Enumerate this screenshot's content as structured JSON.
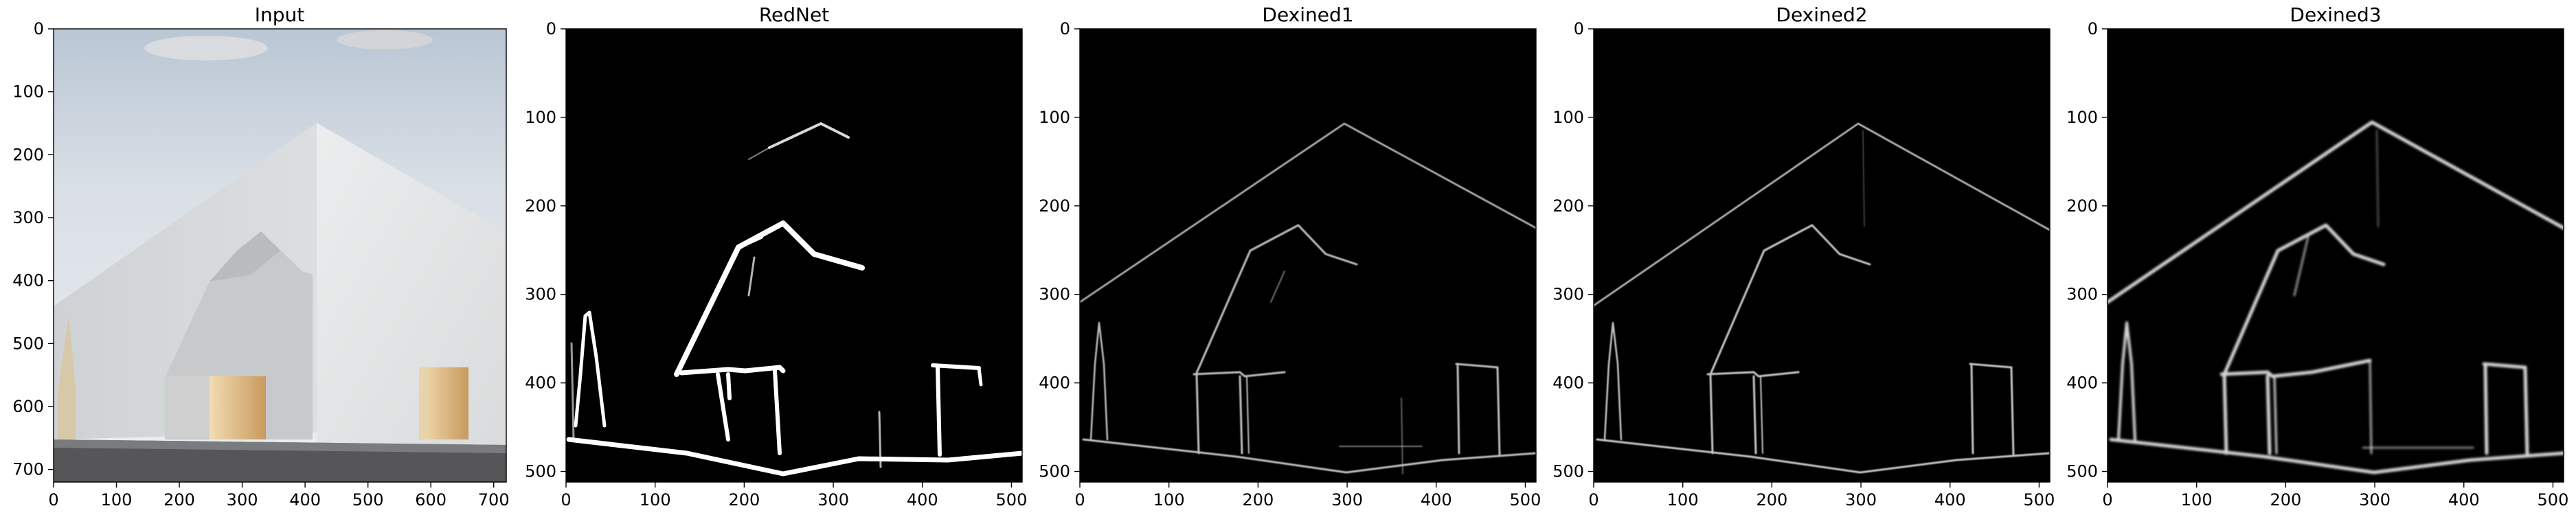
{
  "figure": {
    "panels": [
      {
        "title": "Input",
        "image": "photo",
        "xticks": [
          "0",
          "100",
          "200",
          "300",
          "400",
          "500",
          "600",
          "700"
        ],
        "yticks": [
          "0",
          "100",
          "200",
          "300",
          "400",
          "500",
          "600",
          "700"
        ],
        "xrange": [
          0,
          720
        ],
        "yrange": [
          0,
          720
        ]
      },
      {
        "title": "RedNet",
        "image": "edges-thick",
        "xticks": [
          "0",
          "100",
          "200",
          "300",
          "400",
          "500"
        ],
        "yticks": [
          "0",
          "100",
          "200",
          "300",
          "400",
          "500"
        ],
        "xrange": [
          0,
          512
        ],
        "yrange": [
          0,
          512
        ]
      },
      {
        "title": "Dexined1",
        "image": "edges-thin",
        "xticks": [
          "0",
          "100",
          "200",
          "300",
          "400",
          "500"
        ],
        "yticks": [
          "0",
          "100",
          "200",
          "300",
          "400",
          "500"
        ],
        "xrange": [
          0,
          512
        ],
        "yrange": [
          0,
          512
        ]
      },
      {
        "title": "Dexined2",
        "image": "edges-thin",
        "xticks": [
          "0",
          "100",
          "200",
          "300",
          "400",
          "500"
        ],
        "yticks": [
          "0",
          "100",
          "200",
          "300",
          "400",
          "500"
        ],
        "xrange": [
          0,
          512
        ],
        "yrange": [
          0,
          512
        ]
      },
      {
        "title": "Dexined3",
        "image": "edges-medium",
        "xticks": [
          "0",
          "100",
          "200",
          "300",
          "400",
          "500"
        ],
        "yticks": [
          "0",
          "100",
          "200",
          "300",
          "400",
          "500"
        ],
        "xrange": [
          0,
          512
        ],
        "yrange": [
          0,
          512
        ]
      }
    ]
  }
}
